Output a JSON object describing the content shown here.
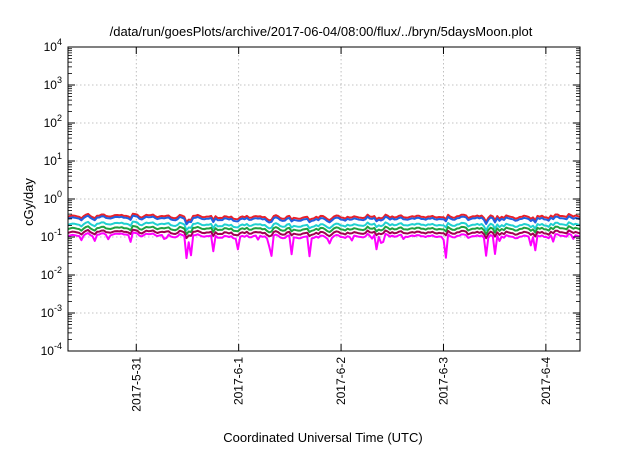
{
  "chart_data": {
    "type": "line",
    "title": "/data/run/goesPlots/archive/2017-06-04/08:00/flux/../bryn/5daysMoon.plot",
    "xlabel": "Coordinated Universal Time (UTC)",
    "ylabel": "cGy/day",
    "y_scale": "log",
    "ylim": [
      0.0001,
      10000
    ],
    "xlim": [
      "2017-05-30 08:00",
      "2017-06-04 08:00"
    ],
    "x_ticks": [
      "2017-5-31",
      "2017-6-1",
      "2017-6-2",
      "2017-6-3",
      "2017-6-4"
    ],
    "y_ticks": [
      {
        "base": "10",
        "exp": "-4"
      },
      {
        "base": "10",
        "exp": "-3"
      },
      {
        "base": "10",
        "exp": "-2"
      },
      {
        "base": "10",
        "exp": "-1"
      },
      {
        "base": "10",
        "exp": "0"
      },
      {
        "base": "10",
        "exp": "1"
      },
      {
        "base": "10",
        "exp": "2"
      },
      {
        "base": "10",
        "exp": "3"
      },
      {
        "base": "10",
        "exp": "4"
      }
    ],
    "grid": true,
    "x_samples": [
      "2017-05-30 08:00",
      "2017-05-30 20:00",
      "2017-05-31 08:00",
      "2017-05-31 20:00",
      "2017-06-01 08:00",
      "2017-06-01 20:00",
      "2017-06-02 08:00",
      "2017-06-02 20:00",
      "2017-06-03 08:00",
      "2017-06-03 20:00",
      "2017-06-04 08:00"
    ],
    "series": [
      {
        "color": "#e8202a",
        "values": [
          0.36,
          0.37,
          0.35,
          0.33,
          0.34,
          0.33,
          0.35,
          0.34,
          0.35,
          0.33,
          0.38
        ]
      },
      {
        "color": "#2060e0",
        "values": [
          0.32,
          0.33,
          0.31,
          0.29,
          0.3,
          0.29,
          0.31,
          0.3,
          0.31,
          0.29,
          0.33
        ]
      },
      {
        "color": "#20d0d0",
        "values": [
          0.22,
          0.23,
          0.22,
          0.2,
          0.21,
          0.2,
          0.22,
          0.21,
          0.21,
          0.2,
          0.23
        ]
      },
      {
        "color": "#20a040",
        "values": [
          0.17,
          0.175,
          0.17,
          0.16,
          0.165,
          0.16,
          0.17,
          0.165,
          0.165,
          0.16,
          0.18
        ]
      },
      {
        "color": "#a00050",
        "values": [
          0.135,
          0.14,
          0.135,
          0.125,
          0.13,
          0.125,
          0.135,
          0.13,
          0.13,
          0.125,
          0.14
        ]
      },
      {
        "color": "#ff00ff",
        "values": [
          0.11,
          0.12,
          0.11,
          0.1,
          0.105,
          0.1,
          0.11,
          0.105,
          0.105,
          0.1,
          0.115
        ]
      }
    ]
  }
}
